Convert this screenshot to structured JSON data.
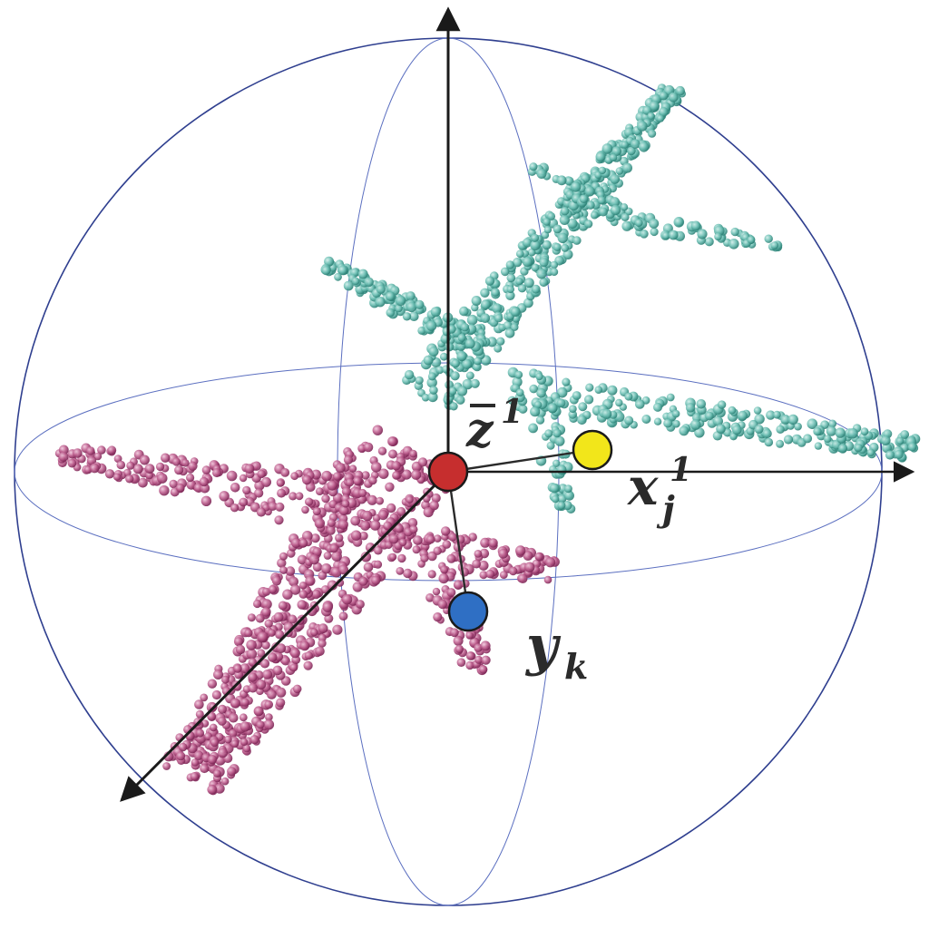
{
  "labels": {
    "center_base": "z",
    "center_sup": "1",
    "point_x_base": "x",
    "point_x_sup": "1",
    "point_x_sub": "j",
    "point_y_base": "y",
    "point_y_sub": "k"
  },
  "colors": {
    "sphere_outline": "#2f3f8f",
    "guide_ellipse": "#5b6fc0",
    "axis": "#1a1a1a",
    "center_point": "#c62e2e",
    "point_x": "#f2e61a",
    "point_y": "#2f6fc4",
    "cloud_teal": "#5fb5aa",
    "cloud_teal_dark": "#2f8a80",
    "cloud_magenta": "#b0537f",
    "cloud_magenta_dark": "#8a2d60"
  },
  "icons": {
    "center_point": "centroid-dot",
    "point_x": "target-point-dot",
    "point_y": "source-point-dot"
  }
}
